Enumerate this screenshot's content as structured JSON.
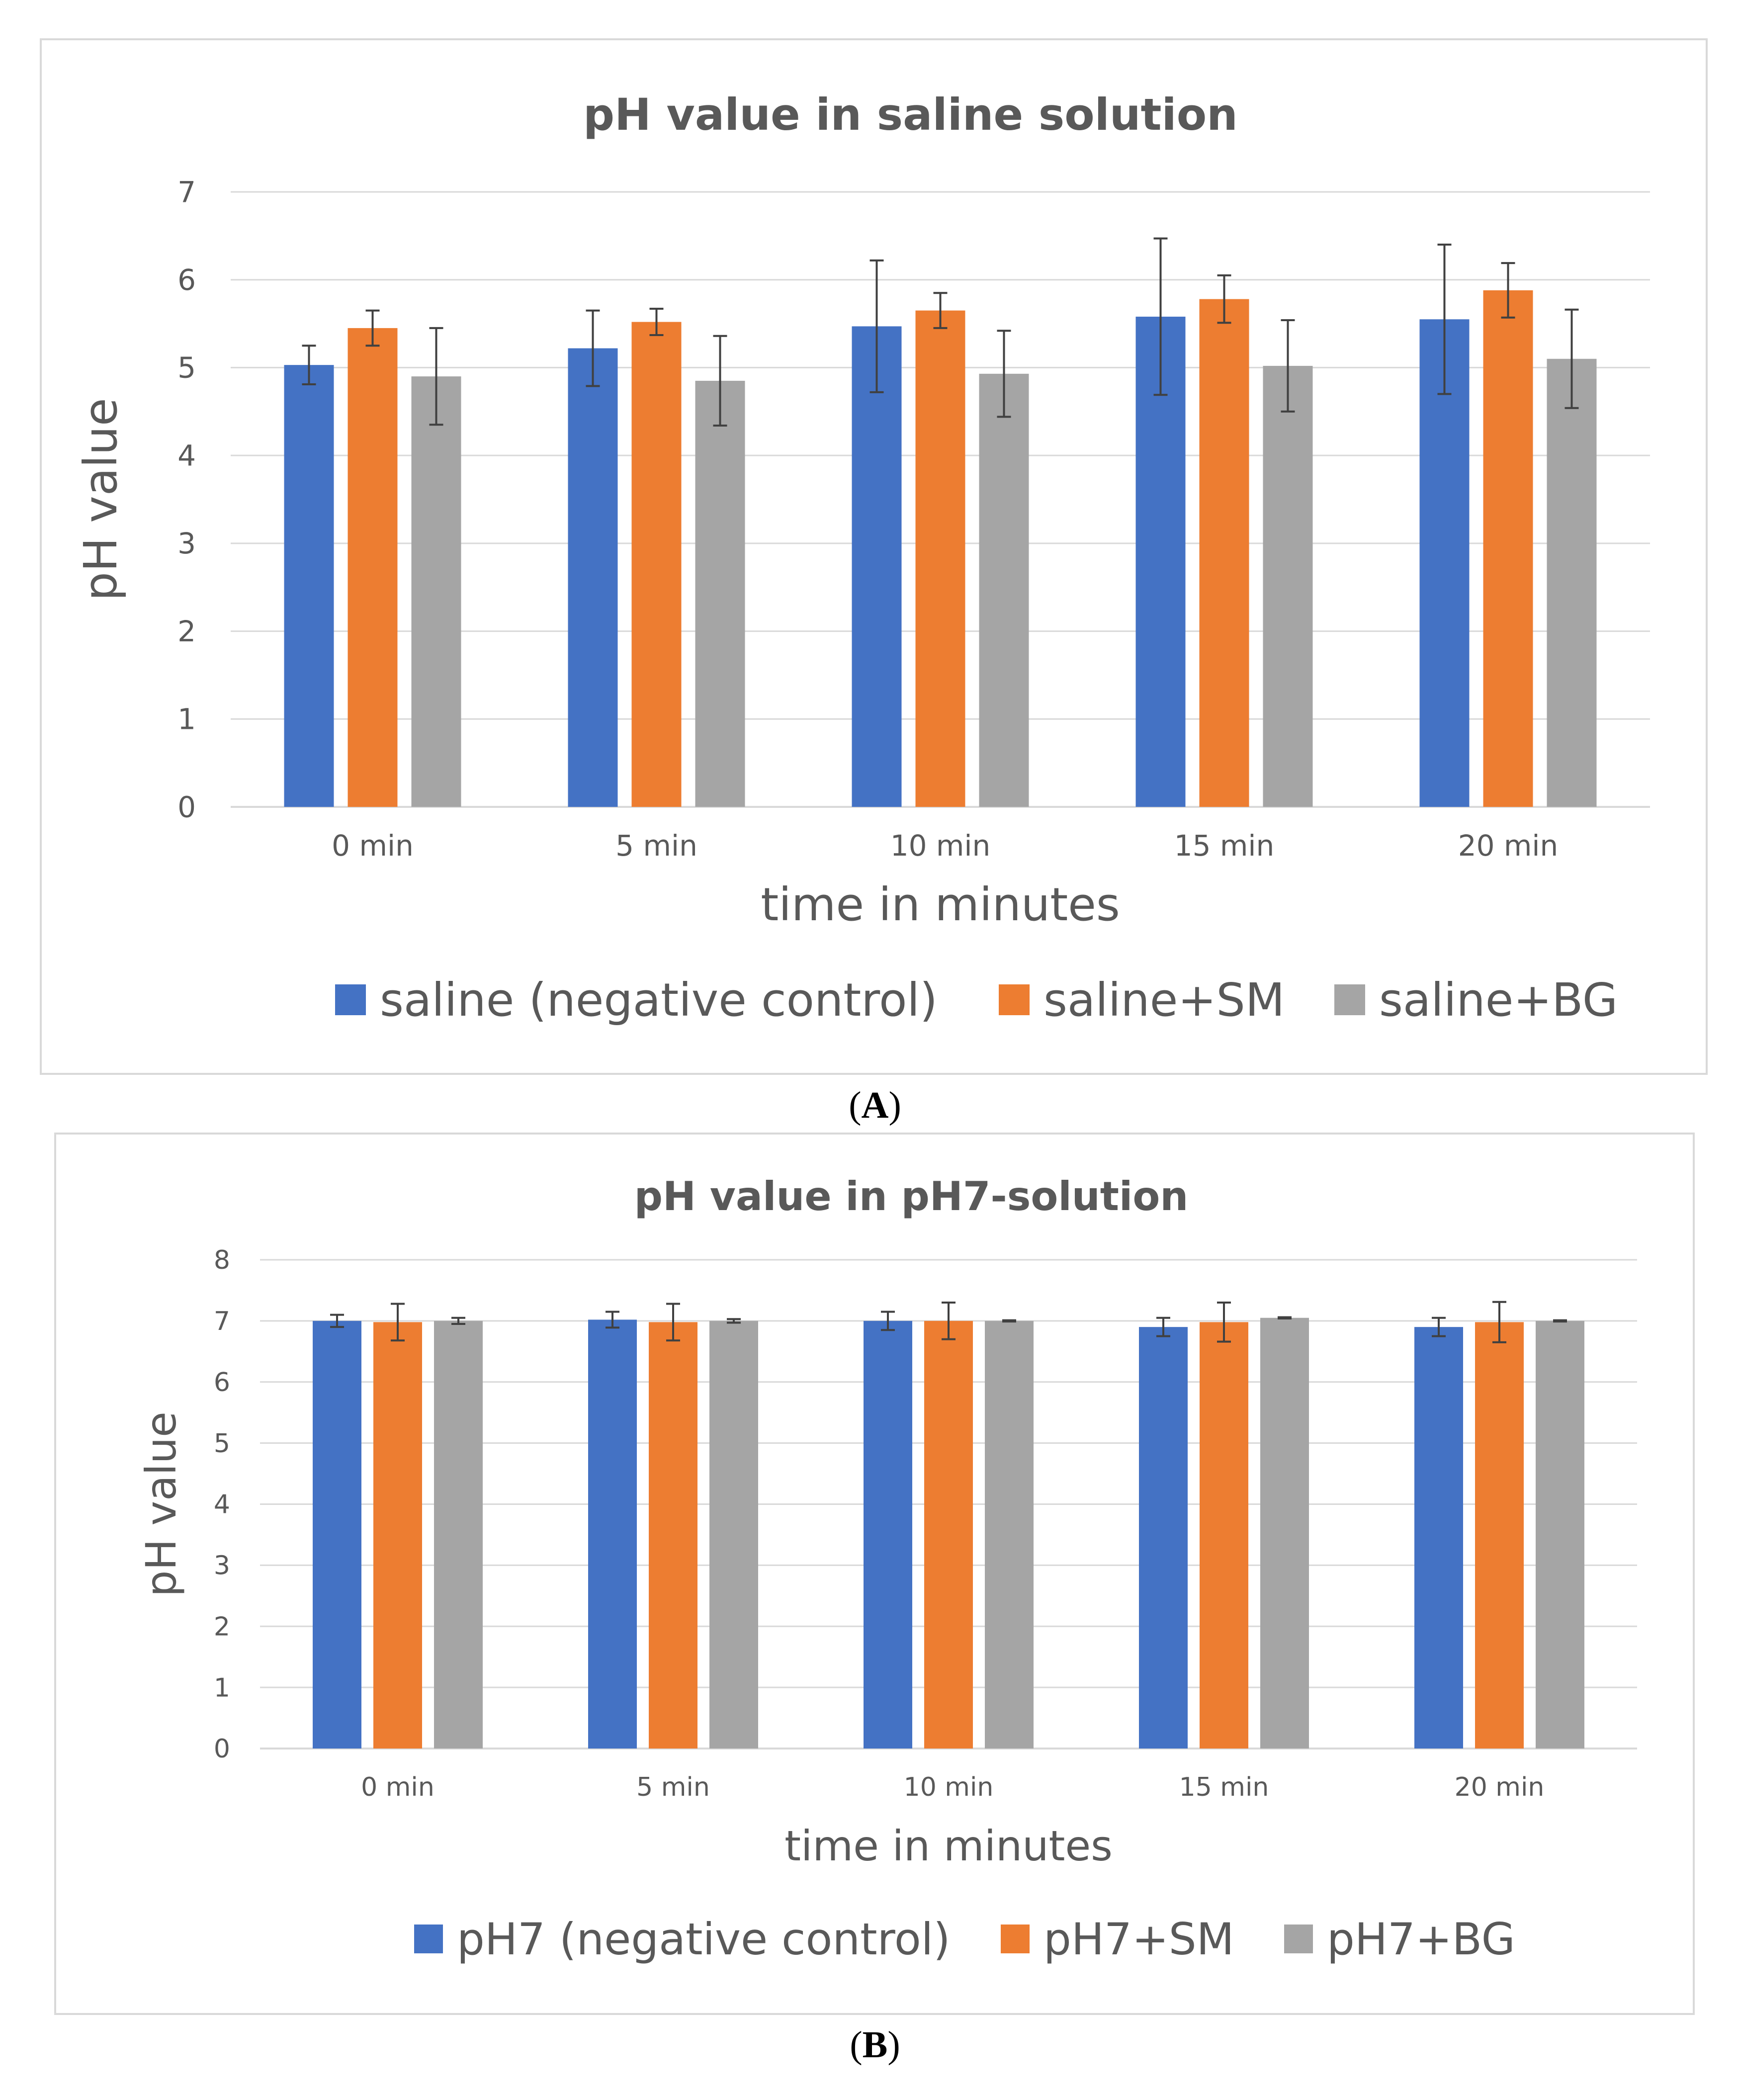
{
  "colors": {
    "series1": "#4472c4",
    "series2": "#ed7d31",
    "series3": "#a5a5a5",
    "text": "#595959",
    "grid": "#d9d9d9",
    "errorbar": "#404040"
  },
  "panels": [
    {
      "caption_letter": "A",
      "caption_open": "(",
      "caption_close": ")"
    },
    {
      "caption_letter": "B",
      "caption_open": "(",
      "caption_close": ")"
    }
  ],
  "chart_data": [
    {
      "type": "bar",
      "title": "pH value in saline solution",
      "xlabel": "time in minutes",
      "ylabel": "pH value",
      "ylim": [
        0,
        7
      ],
      "yticks": [
        "0",
        "1",
        "2",
        "3",
        "4",
        "5",
        "6",
        "7"
      ],
      "grid": true,
      "legend_position": "bottom",
      "categories": [
        "0 min",
        "5 min",
        "10 min",
        "15 min",
        "20 min"
      ],
      "series": [
        {
          "name": "saline (negative control)",
          "color": "#4472c4",
          "values": [
            5.03,
            5.22,
            5.47,
            5.58,
            5.55
          ],
          "errors": [
            0.22,
            0.43,
            0.75,
            0.89,
            0.85
          ]
        },
        {
          "name": "saline+SM",
          "color": "#ed7d31",
          "values": [
            5.45,
            5.52,
            5.65,
            5.78,
            5.88
          ],
          "errors": [
            0.2,
            0.15,
            0.2,
            0.27,
            0.31
          ]
        },
        {
          "name": "saline+BG",
          "color": "#a5a5a5",
          "values": [
            4.9,
            4.85,
            4.93,
            5.02,
            5.1
          ],
          "errors": [
            0.55,
            0.51,
            0.49,
            0.52,
            0.56
          ]
        }
      ]
    },
    {
      "type": "bar",
      "title": "pH value in pH7-solution",
      "xlabel": "time in minutes",
      "ylabel": "pH value",
      "ylim": [
        0,
        8
      ],
      "yticks": [
        "0",
        "1",
        "2",
        "3",
        "4",
        "5",
        "6",
        "7",
        "8"
      ],
      "grid": true,
      "legend_position": "bottom",
      "categories": [
        "0 min",
        "5 min",
        "10 min",
        "15 min",
        "20 min"
      ],
      "series": [
        {
          "name": "pH7 (negative control)",
          "color": "#4472c4",
          "values": [
            7.0,
            7.02,
            7.0,
            6.9,
            6.9
          ],
          "errors": [
            0.1,
            0.13,
            0.15,
            0.15,
            0.15
          ]
        },
        {
          "name": "pH7+SM",
          "color": "#ed7d31",
          "values": [
            6.98,
            6.98,
            7.0,
            6.98,
            6.98
          ],
          "errors": [
            0.3,
            0.3,
            0.3,
            0.32,
            0.33
          ]
        },
        {
          "name": "pH7+BG",
          "color": "#a5a5a5",
          "values": [
            7.0,
            7.0,
            7.0,
            7.05,
            7.0
          ],
          "errors": [
            0.05,
            0.03,
            0.01,
            0.01,
            0.01
          ]
        }
      ]
    }
  ]
}
